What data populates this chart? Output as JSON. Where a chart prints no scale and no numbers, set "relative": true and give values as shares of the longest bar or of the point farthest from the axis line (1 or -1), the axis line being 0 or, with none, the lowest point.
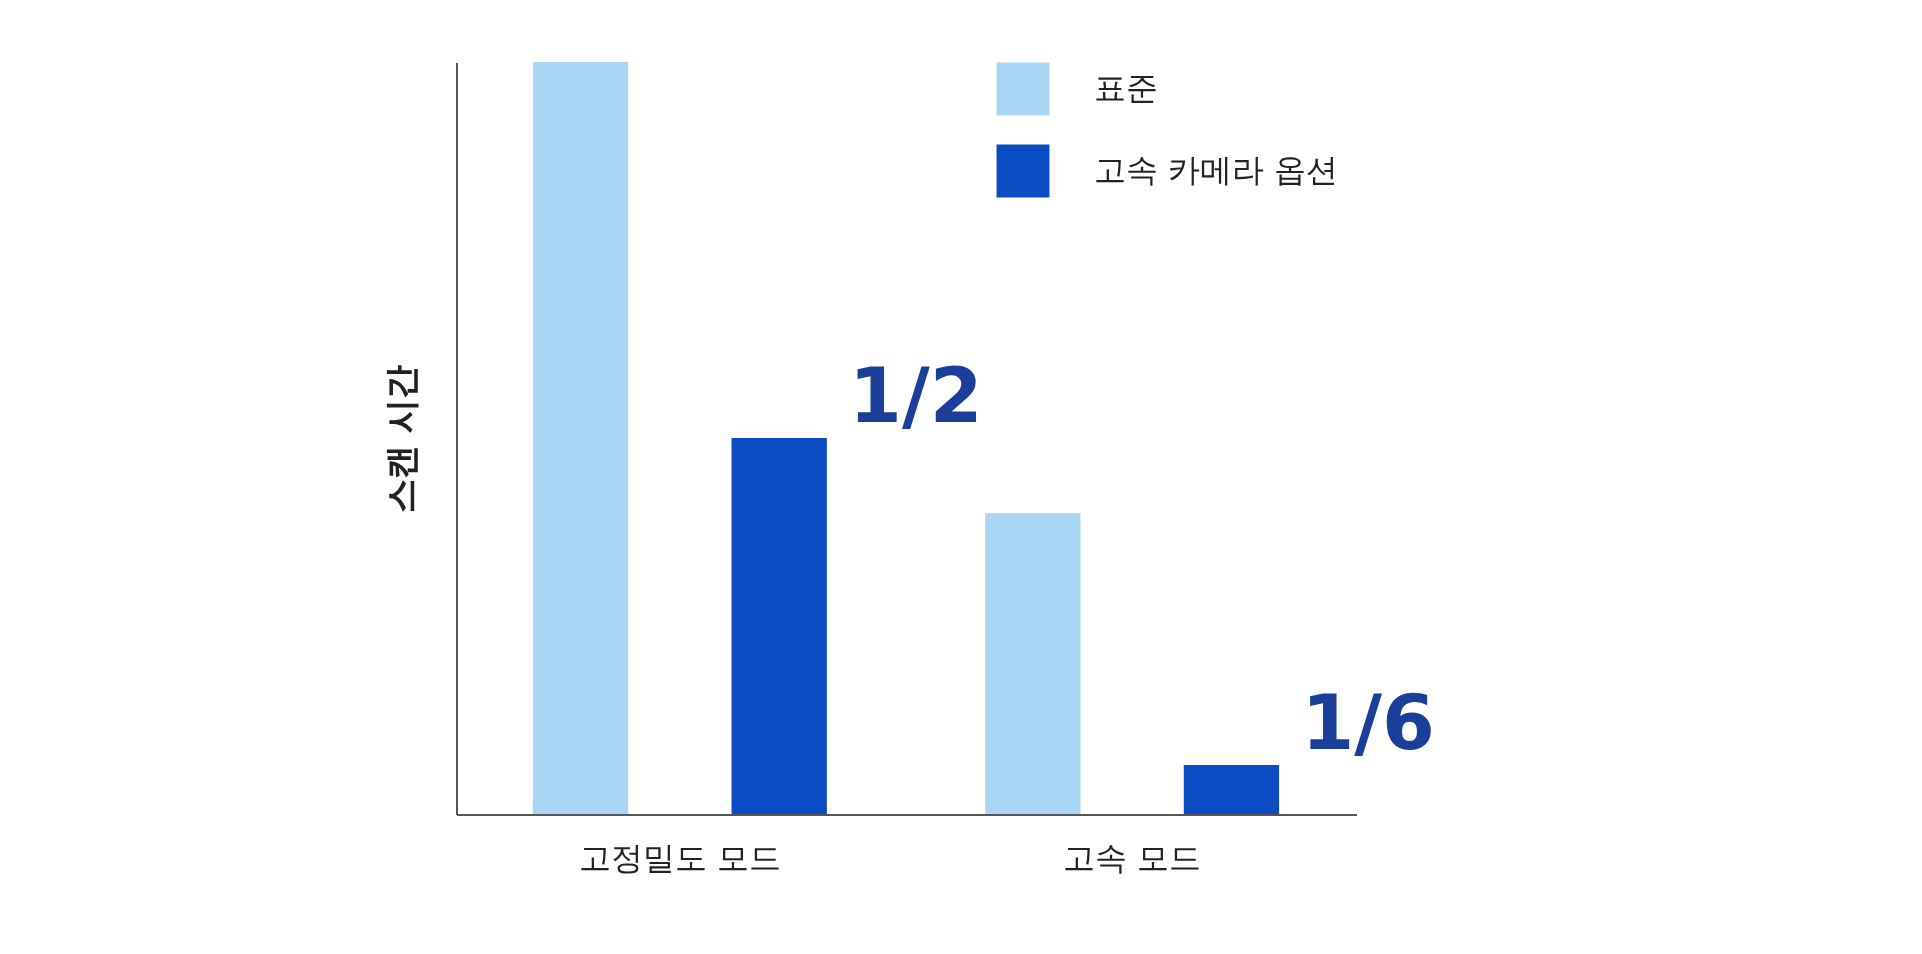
{
  "chart_data": {
    "type": "bar",
    "relative": true,
    "ylabel": "스캔 시간",
    "categories": [
      "고정밀도 모드",
      "고속 모드"
    ],
    "series": [
      {
        "name": "표준",
        "color": "#a9d6f5",
        "values": [
          1,
          0.4
        ]
      },
      {
        "name": "고속 카메라 옵션",
        "color": "#0b4cc2",
        "values": [
          0.5,
          0.065
        ]
      }
    ],
    "annotations": [
      "1/2",
      "1/6"
    ],
    "legend": "top right",
    "grid": false
  }
}
